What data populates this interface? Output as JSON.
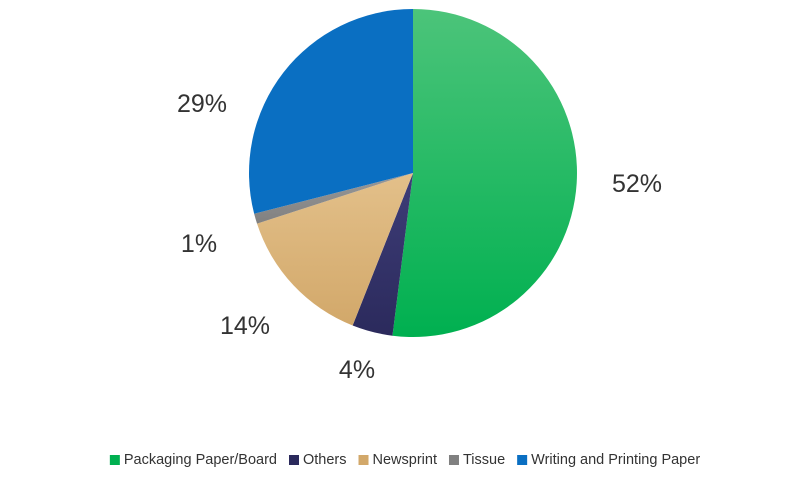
{
  "chart_data": {
    "type": "pie",
    "title": "",
    "slices": [
      {
        "name": "Packaging Paper/Board",
        "value": 52,
        "label": "52%",
        "color": "#00b050",
        "color_light": "#4cc47a"
      },
      {
        "name": "Others",
        "value": 4,
        "label": "4%",
        "color": "#2b2a5c",
        "color_light": "#3e3d78"
      },
      {
        "name": "Newsprint",
        "value": 14,
        "label": "14%",
        "color": "#d2a86a",
        "color_light": "#e3c08a"
      },
      {
        "name": "Tissue",
        "value": 1,
        "label": "1%",
        "color": "#808080",
        "color_light": "#999999"
      },
      {
        "name": "Writing and Printing Paper",
        "value": 29,
        "label": "29%",
        "color": "#0a6fc2",
        "color_light": "#0a6fc2"
      }
    ],
    "start_angle_deg": 0,
    "direction": "clockwise",
    "legend_position": "bottom"
  }
}
